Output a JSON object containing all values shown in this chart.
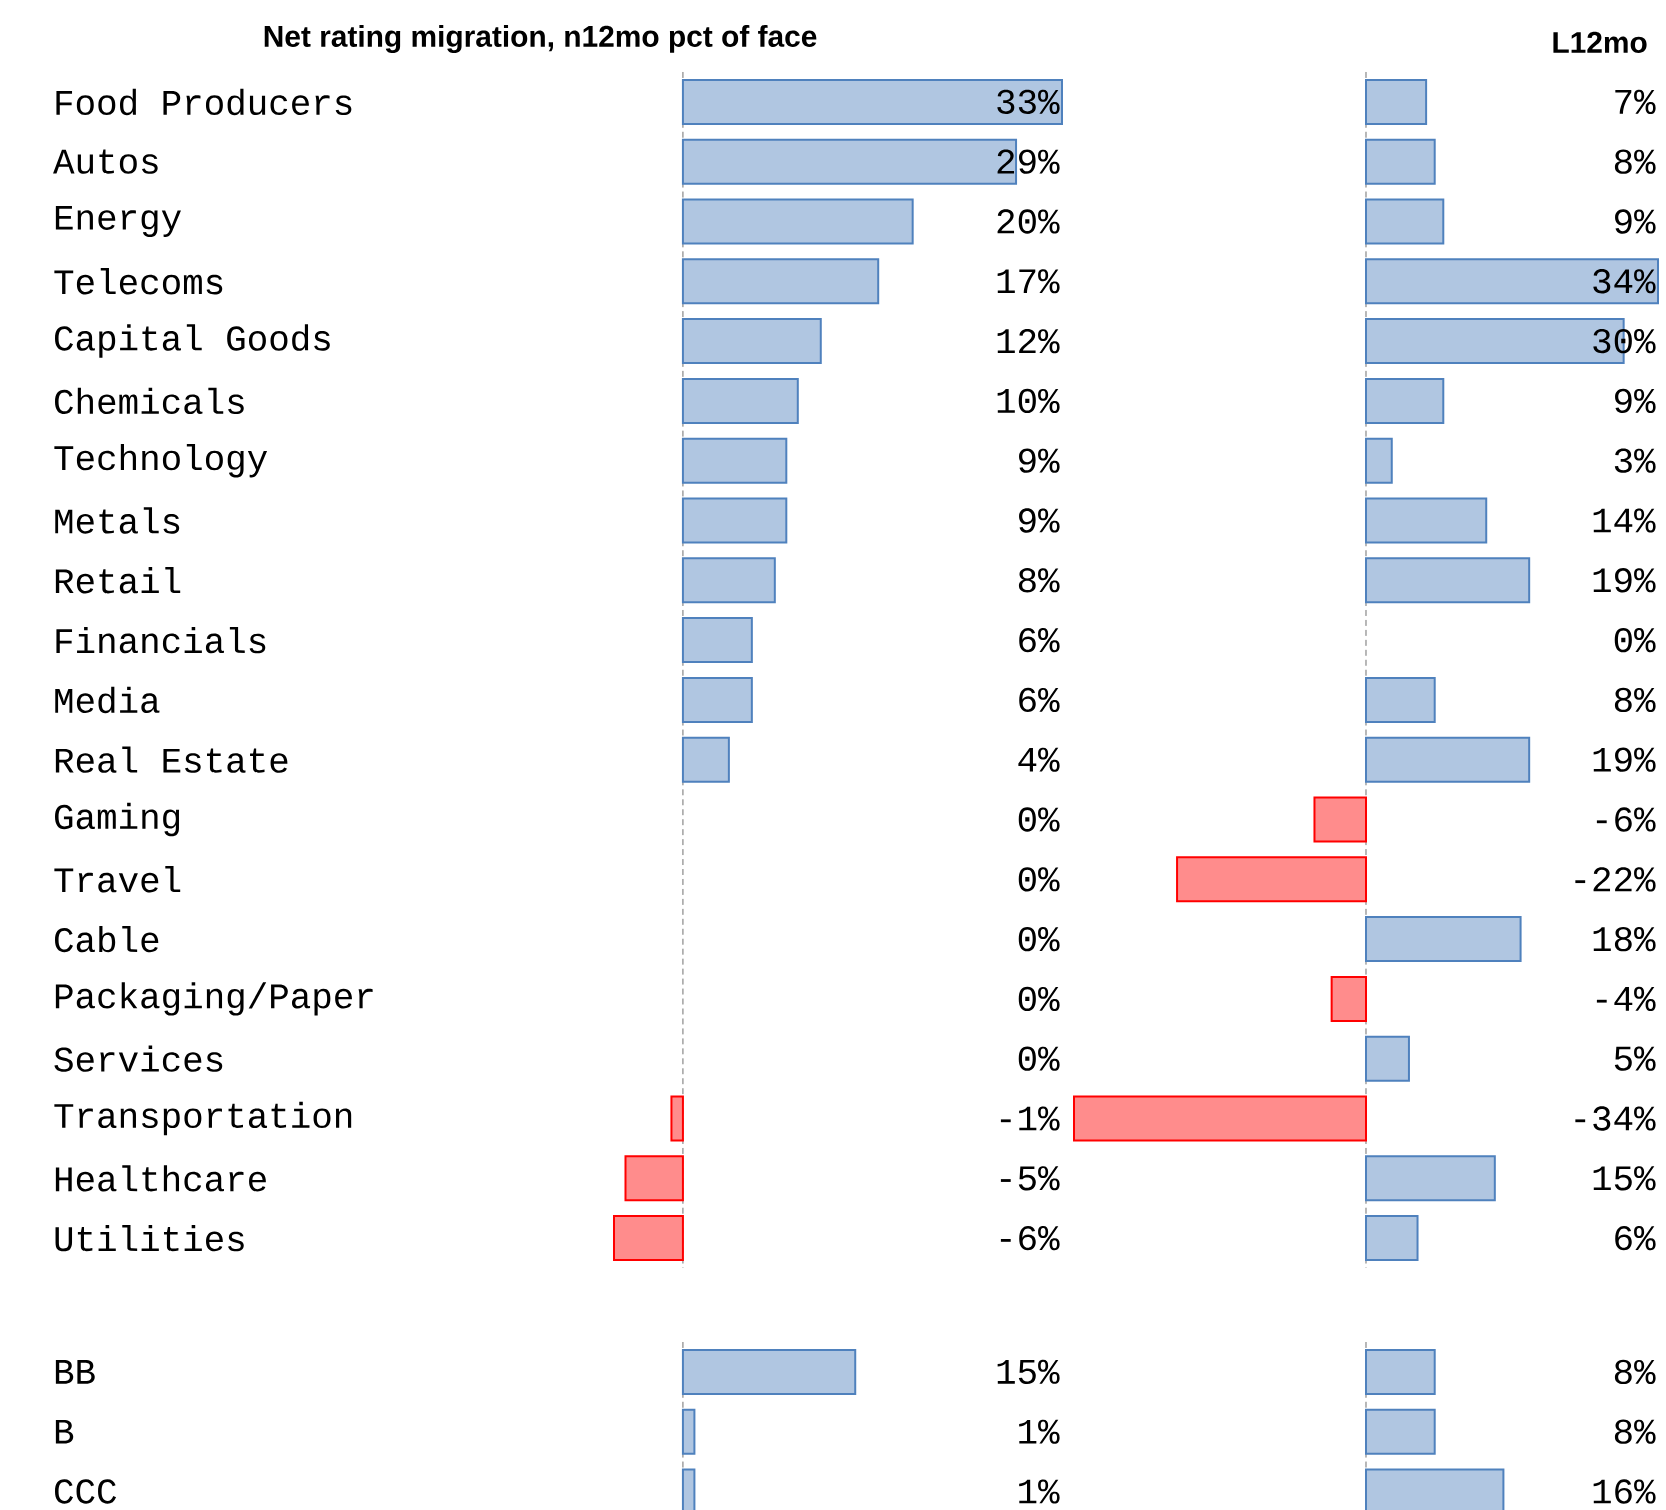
{
  "chart_data": [
    {
      "type": "bar",
      "orientation": "horizontal",
      "title": "Net rating migration, n12mo pct of face",
      "categories": [
        "Food Producers",
        "Autos",
        "Energy",
        "Telecoms",
        "Capital Goods",
        "Chemicals",
        "Technology",
        "Metals",
        "Retail",
        "Financials",
        "Media",
        "Real Estate",
        "Gaming",
        "Travel",
        "Cable",
        "Packaging/Paper",
        "Services",
        "Transportation",
        "Healthcare",
        "Utilities"
      ],
      "values": [
        33,
        29,
        20,
        17,
        12,
        10,
        9,
        9,
        8,
        6,
        6,
        4,
        0,
        0,
        0,
        0,
        0,
        -1,
        -5,
        -6
      ],
      "value_labels": [
        "33%",
        "29%",
        "20%",
        "17%",
        "12%",
        "10%",
        "9%",
        "9%",
        "8%",
        "6%",
        "6%",
        "4%",
        "0%",
        "0%",
        "0%",
        "0%",
        "0%",
        "-1%",
        "-5%",
        "-6%"
      ],
      "colors": [
        "#4f81bd",
        "#4f81bd",
        "#4f81bd",
        "#4f81bd",
        "#4f81bd",
        "#4f81bd",
        "#4f81bd",
        "#4f81bd",
        "#4f81bd",
        "#4f81bd",
        "#4f81bd",
        "#4f81bd",
        "#4f81bd",
        "#4f81bd",
        "#4f81bd",
        "#4f81bd",
        "#4f81bd",
        "#ff0000",
        "#ff0000",
        "#ff0000"
      ],
      "ref_lines": [
        {
          "axis": "x",
          "value": 0,
          "line_style": "dashed"
        }
      ],
      "xlim": [
        -6,
        33
      ],
      "tick_labels": "y"
    },
    {
      "type": "bar",
      "orientation": "horizontal",
      "title": "L12mo",
      "categories": [
        null,
        null,
        null,
        null,
        null,
        null,
        null,
        null,
        null,
        null,
        null,
        null,
        null,
        null,
        null,
        null,
        null,
        null,
        null,
        null
      ],
      "values": [
        7,
        8,
        9,
        34,
        30,
        9,
        3,
        14,
        19,
        0,
        8,
        19,
        -6,
        -22,
        18,
        -4,
        5,
        -34,
        15,
        6
      ],
      "value_labels": [
        "7%",
        "8%",
        "9%",
        "34%",
        "30%",
        "9%",
        "3%",
        "14%",
        "19%",
        "0%",
        "8%",
        "19%",
        "-6%",
        "-22%",
        "18%",
        "-4%",
        "5%",
        "-34%",
        "15%",
        "6%"
      ],
      "colors": [
        "#4f81bd",
        "#4f81bd",
        "#4f81bd",
        "#4f81bd",
        "#4f81bd",
        "#4f81bd",
        "#4f81bd",
        "#4f81bd",
        "#4f81bd",
        "#4f81bd",
        "#4f81bd",
        "#4f81bd",
        "#ff0000",
        "#ff0000",
        "#4f81bd",
        "#ff0000",
        "#4f81bd",
        "#ff0000",
        "#4f81bd",
        "#4f81bd"
      ],
      "ref_lines": [
        {
          "axis": "x",
          "value": 0,
          "line_style": "dashed"
        }
      ],
      "xlim": [
        -34,
        34
      ]
    },
    {
      "type": "bar",
      "orientation": "horizontal",
      "categories": [
        "BB",
        "B",
        "CCC"
      ],
      "values": [
        15,
        1,
        1
      ],
      "value_labels": [
        "15%",
        "1%",
        "1%"
      ],
      "colors": [
        "#4f81bd",
        "#4f81bd",
        "#4f81bd"
      ],
      "ref_lines": [
        {
          "axis": "x",
          "value": 0,
          "line_style": "dashed"
        }
      ],
      "tick_labels": "y"
    },
    {
      "type": "bar",
      "orientation": "horizontal",
      "categories": [
        null,
        null,
        null
      ],
      "values": [
        8,
        8,
        16
      ],
      "value_labels": [
        "8%",
        "8%",
        "16%"
      ],
      "colors": [
        "#4f81bd",
        "#4f81bd",
        "#4f81bd"
      ],
      "ref_lines": [
        {
          "axis": "x",
          "value": 0,
          "line_style": "dashed"
        }
      ]
    }
  ]
}
